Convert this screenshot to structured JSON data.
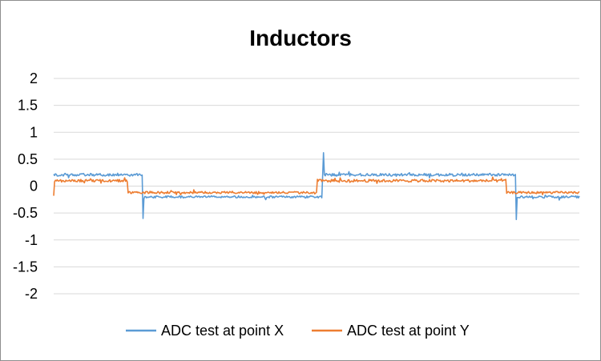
{
  "chart_data": {
    "type": "line",
    "title": "Inductors",
    "xlabel": "",
    "ylabel": "",
    "ylim": [
      -2,
      2
    ],
    "yticks": [
      "2",
      "1.5",
      "1",
      "0.5",
      "0",
      "-0.5",
      "-1",
      "-1.5",
      "-2"
    ],
    "grid": true,
    "legend_position": "bottom",
    "series": [
      {
        "name": "ADC test at point X",
        "color": "#5b9bd5",
        "segments": [
          {
            "from": 0.0,
            "to": 0.17,
            "value": 0.21,
            "noise": 0.025
          },
          {
            "from": 0.17,
            "to": 0.51,
            "value": -0.2,
            "noise": 0.02
          },
          {
            "from": 0.51,
            "to": 0.88,
            "value": 0.21,
            "noise": 0.025
          },
          {
            "from": 0.88,
            "to": 1.0,
            "value": -0.2,
            "noise": 0.02
          }
        ],
        "spikes": [
          {
            "at": 0.17,
            "value": -0.6
          },
          {
            "at": 0.513,
            "value": 0.62
          },
          {
            "at": 0.88,
            "value": -0.62
          }
        ]
      },
      {
        "name": "ADC test at point Y",
        "color": "#ed7d31",
        "segments": [
          {
            "from": 0.0,
            "to": 0.14,
            "value": 0.1,
            "noise": 0.025
          },
          {
            "from": 0.14,
            "to": 0.5,
            "value": -0.12,
            "noise": 0.02
          },
          {
            "from": 0.5,
            "to": 0.86,
            "value": 0.1,
            "noise": 0.025
          },
          {
            "from": 0.86,
            "to": 1.0,
            "value": -0.12,
            "noise": 0.02
          }
        ],
        "spikes": [
          {
            "at": 0.0,
            "value": -0.18
          }
        ]
      }
    ]
  }
}
